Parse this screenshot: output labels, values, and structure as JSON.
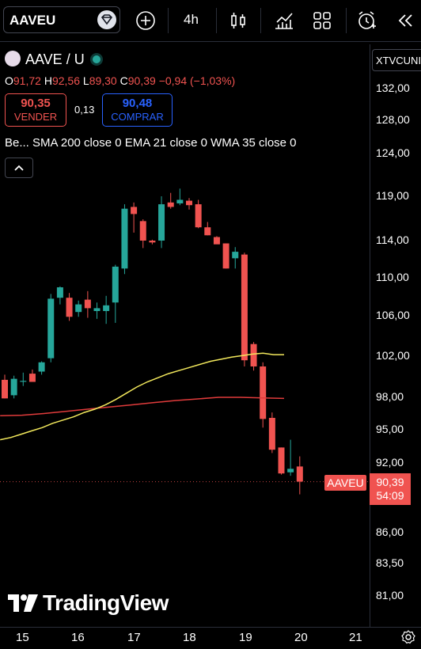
{
  "toolbar": {
    "symbol": "AAVEU",
    "interval": "4h"
  },
  "legend": {
    "symbol_line": "AAVE / U",
    "ohlc": {
      "o_label": "O",
      "o": "91,72",
      "h_label": "H",
      "h": "92,56",
      "l_label": "L",
      "l": "89,30",
      "c_label": "C",
      "c": "90,39",
      "change": "−0,94 (−1,03%)"
    },
    "sell_price": "90,35",
    "sell_label": "VENDER",
    "spread": "0,13",
    "buy_price": "90,48",
    "buy_label": "COMPRAR",
    "indicators": "Be...  SMA 200 close 0  EMA 21 close 0  WMA 35 close 0"
  },
  "axis": {
    "header": "XTVCUNI",
    "ticks": [
      "132,00",
      "128,00",
      "124,00",
      "119,00",
      "114,00",
      "110,00",
      "106,00",
      "102,00",
      "98,00",
      "95,00",
      "92,00",
      "86,00",
      "83,50",
      "81,00"
    ],
    "last_price": "90,39",
    "countdown": "54:09",
    "symbol_tag": "AAVEU"
  },
  "colors": {
    "up": "#26a69a",
    "down": "#f05350",
    "ema": "#f2e85c",
    "sma": "#e03b3b",
    "background": "#000000"
  },
  "chart_data": {
    "type": "candlestick",
    "x_labels": [
      "15",
      "16",
      "17",
      "18",
      "19",
      "20",
      "21"
    ],
    "y_ticks": [
      132.0,
      128.0,
      124.0,
      119.0,
      114.0,
      110.0,
      106.0,
      102.0,
      98.0,
      95.0,
      92.0,
      86.0,
      83.5,
      81.0
    ],
    "candles": [
      {
        "o": 99.7,
        "h": 100.2,
        "l": 97.9,
        "c": 97.9
      },
      {
        "o": 98.2,
        "h": 100.1,
        "l": 97.9,
        "c": 99.8
      },
      {
        "o": 99.6,
        "h": 100.4,
        "l": 99.1,
        "c": 99.6
      },
      {
        "o": 100.3,
        "h": 100.7,
        "l": 99.5,
        "c": 99.5
      },
      {
        "o": 100.5,
        "h": 101.5,
        "l": 100.2,
        "c": 101.4
      },
      {
        "o": 101.8,
        "h": 108.3,
        "l": 101.4,
        "c": 107.8
      },
      {
        "o": 107.9,
        "h": 109.1,
        "l": 107.2,
        "c": 109.0
      },
      {
        "o": 107.9,
        "h": 108.4,
        "l": 105.5,
        "c": 105.9
      },
      {
        "o": 106.4,
        "h": 107.6,
        "l": 105.9,
        "c": 107.2
      },
      {
        "o": 107.7,
        "h": 108.6,
        "l": 105.8,
        "c": 106.8
      },
      {
        "o": 106.5,
        "h": 107.4,
        "l": 105.7,
        "c": 106.8
      },
      {
        "o": 106.5,
        "h": 108.1,
        "l": 105.2,
        "c": 107.1
      },
      {
        "o": 107.4,
        "h": 111.4,
        "l": 105.3,
        "c": 111.2
      },
      {
        "o": 111.0,
        "h": 118.1,
        "l": 110.4,
        "c": 117.6
      },
      {
        "o": 117.8,
        "h": 118.3,
        "l": 114.9,
        "c": 117.0
      },
      {
        "o": 116.2,
        "h": 116.4,
        "l": 113.2,
        "c": 114.0
      },
      {
        "o": 114.0,
        "h": 114.1,
        "l": 113.6,
        "c": 113.8
      },
      {
        "o": 114.0,
        "h": 119.0,
        "l": 113.2,
        "c": 118.1
      },
      {
        "o": 118.3,
        "h": 119.4,
        "l": 117.6,
        "c": 117.8
      },
      {
        "o": 118.2,
        "h": 119.9,
        "l": 118.0,
        "c": 118.6
      },
      {
        "o": 118.5,
        "h": 118.8,
        "l": 117.5,
        "c": 118.0
      },
      {
        "o": 118.1,
        "h": 118.6,
        "l": 115.4,
        "c": 115.5
      },
      {
        "o": 115.5,
        "h": 116.1,
        "l": 114.6,
        "c": 114.6
      },
      {
        "o": 114.4,
        "h": 114.5,
        "l": 113.7,
        "c": 113.6
      },
      {
        "o": 113.7,
        "h": 113.7,
        "l": 111.0,
        "c": 111.0
      },
      {
        "o": 112.1,
        "h": 113.3,
        "l": 111.0,
        "c": 112.8
      },
      {
        "o": 112.5,
        "h": 112.7,
        "l": 101.0,
        "c": 101.6
      },
      {
        "o": 103.2,
        "h": 103.4,
        "l": 100.6,
        "c": 101.0
      },
      {
        "o": 101.0,
        "h": 101.4,
        "l": 95.2,
        "c": 96.0
      },
      {
        "o": 96.1,
        "h": 96.6,
        "l": 92.9,
        "c": 93.2
      },
      {
        "o": 93.4,
        "h": 93.4,
        "l": 91.0,
        "c": 91.1
      },
      {
        "o": 91.2,
        "h": 94.1,
        "l": 90.9,
        "c": 91.5
      },
      {
        "o": 91.7,
        "h": 92.6,
        "l": 89.3,
        "c": 90.4
      }
    ],
    "ema_21": [
      94.1,
      94.3,
      94.6,
      94.9,
      95.2,
      95.6,
      95.9,
      96.2,
      96.6,
      96.9,
      97.3,
      97.8,
      98.4,
      99.0,
      99.5,
      99.9,
      100.3,
      100.6,
      100.9,
      101.2,
      101.5,
      101.7,
      101.9,
      102.05,
      102.2,
      102.3,
      102.15,
      102.15
    ],
    "sma_200": [
      96.3,
      96.35,
      96.5,
      96.7,
      96.9,
      97.1,
      97.3,
      97.5,
      97.7,
      97.85,
      98.0,
      98.0,
      97.95,
      97.9
    ],
    "last_price": 90.39
  }
}
